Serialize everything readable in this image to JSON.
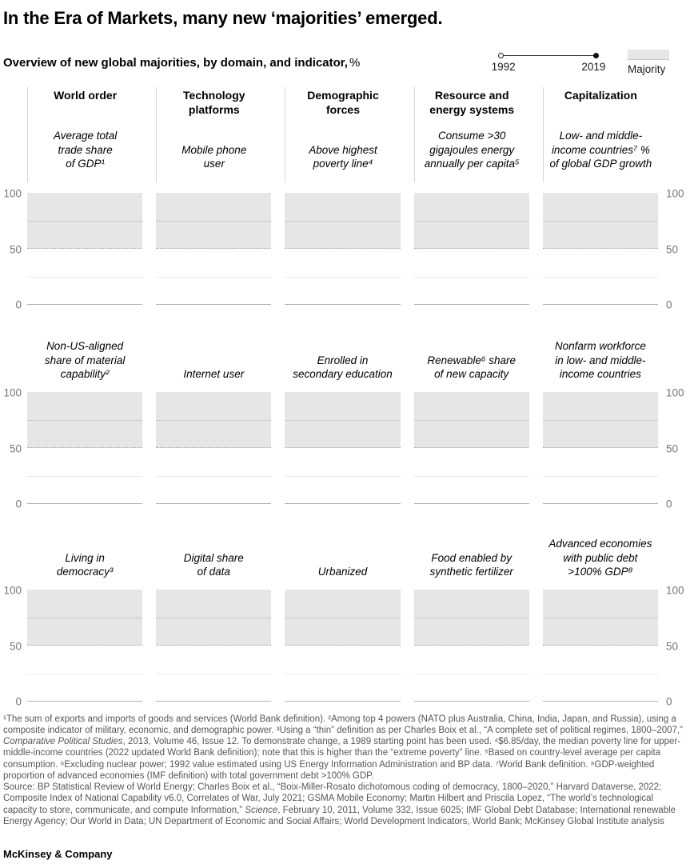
{
  "meta": {
    "title": "In the Era of Markets, many new ‘majorities’ emerged.",
    "subtitle": "Overview of new global majorities, by domain, and indicator,",
    "subtitle_unit": "%"
  },
  "legend": {
    "start_year": "1992",
    "end_year": "2019",
    "majority_label": "Majority",
    "majority_color": "#e6e6e6"
  },
  "axis": {
    "ticks": [
      "100",
      "50",
      "0"
    ]
  },
  "columns": [
    {
      "header": "World order",
      "indicators": [
        "Average total\ntrade share\nof GDP¹",
        "Non-US-aligned\nshare of material\ncapability²",
        "Living in\ndemocracy³"
      ]
    },
    {
      "header": "Technology\nplatforms",
      "indicators": [
        "Mobile phone\nuser",
        "Internet user",
        "Digital share\nof data"
      ]
    },
    {
      "header": "Demographic\nforces",
      "indicators": [
        "Above highest\npoverty line⁴",
        "Enrolled in\nsecondary education",
        "Urbanized"
      ]
    },
    {
      "header": "Resource and\nenergy systems",
      "indicators": [
        "Consume >30\ngigajoules energy\nannually per capita⁵",
        "Renewable⁶ share\nof new capacity",
        "Food enabled by\nsynthetic fertilizer"
      ]
    },
    {
      "header": "Capitalization",
      "indicators": [
        "Low- and middle-\nincome countries⁷ %\nof global GDP growth",
        "Nonfarm workforce\nin low- and middle-\nincome countries",
        "Advanced economies\nwith public debt\n>100% GDP⁸"
      ]
    }
  ],
  "chart_data": {
    "type": "line",
    "subtype": "small_multiples_dumbbell",
    "grid": {
      "rows": 3,
      "cols": 5
    },
    "title": "Overview of new global majorities, by domain, and indicator, %",
    "x_ticks": [
      1992,
      2019
    ],
    "ylim": [
      0,
      100
    ],
    "y_ticks": [
      100,
      50,
      0
    ],
    "unit": "%",
    "majority_band": {
      "from": 50,
      "to": 100,
      "fill": "#e6e6e6"
    },
    "gridlines": [
      75,
      50,
      25,
      0
    ],
    "series": [],
    "note": "Each of the 15 panels shows only the shaded 50–100 majority band, gridlines at 75/50/25 and the 0 baseline; no 1992–2019 data lines are rendered in the screenshot pixels."
  },
  "footnotes": {
    "notes": [
      {
        "t": "¹The sum of exports and imports of goods and services (World Bank definition). ²Among top 4 powers (NATO plus Australia, China, India, Japan, and Russia), using a composite indicator of military, economic, and demographic power. ³Using a “thin” definition as per Charles Boix et al., “A complete set of political regimes, 1800–2007,” "
      },
      {
        "t": "Comparative Political Studies",
        "i": true
      },
      {
        "t": ", 2013, Volume 46, Issue 12. To demonstrate change, a 1989 starting point has been used. ⁴$6.85/day, the median poverty line for upper-middle-income countries (2022 updated World Bank definition); note that this is higher than the “extreme poverty” line. ⁵Based on country-level average per capita consumption. ⁶Excluding nuclear power; 1992 value estimated using US Energy Information Administration and BP data. ⁷World Bank definition. ⁸GDP-weighted proportion of advanced economies (IMF definition) with total government debt >100% GDP."
      }
    ],
    "source": [
      {
        "t": "Source: BP Statistical Review of World Energy; Charles Boix et al., “Boix-Miller-Rosato dichotomous coding of democracy, 1800–2020,” Harvard Dataverse, 2022; Composite Index of National Capability v6.0, Correlates of War, July 2021; GSMA Mobile Economy; Martin Hilbert and Priscila Lopez, “The world’s technological capacity to store, communicate, and compute Information,” "
      },
      {
        "t": "Science",
        "i": true
      },
      {
        "t": ", February 10, 2011, Volume 332, Issue 6025; IMF Global Debt Database; International renewable Energy Agency; Our World in Data; UN Department of Economic and Social Affairs; World Development Indicators, World Bank; McKinsey Global Institute analysis"
      }
    ]
  },
  "footer": {
    "brand": "McKinsey & Company"
  }
}
